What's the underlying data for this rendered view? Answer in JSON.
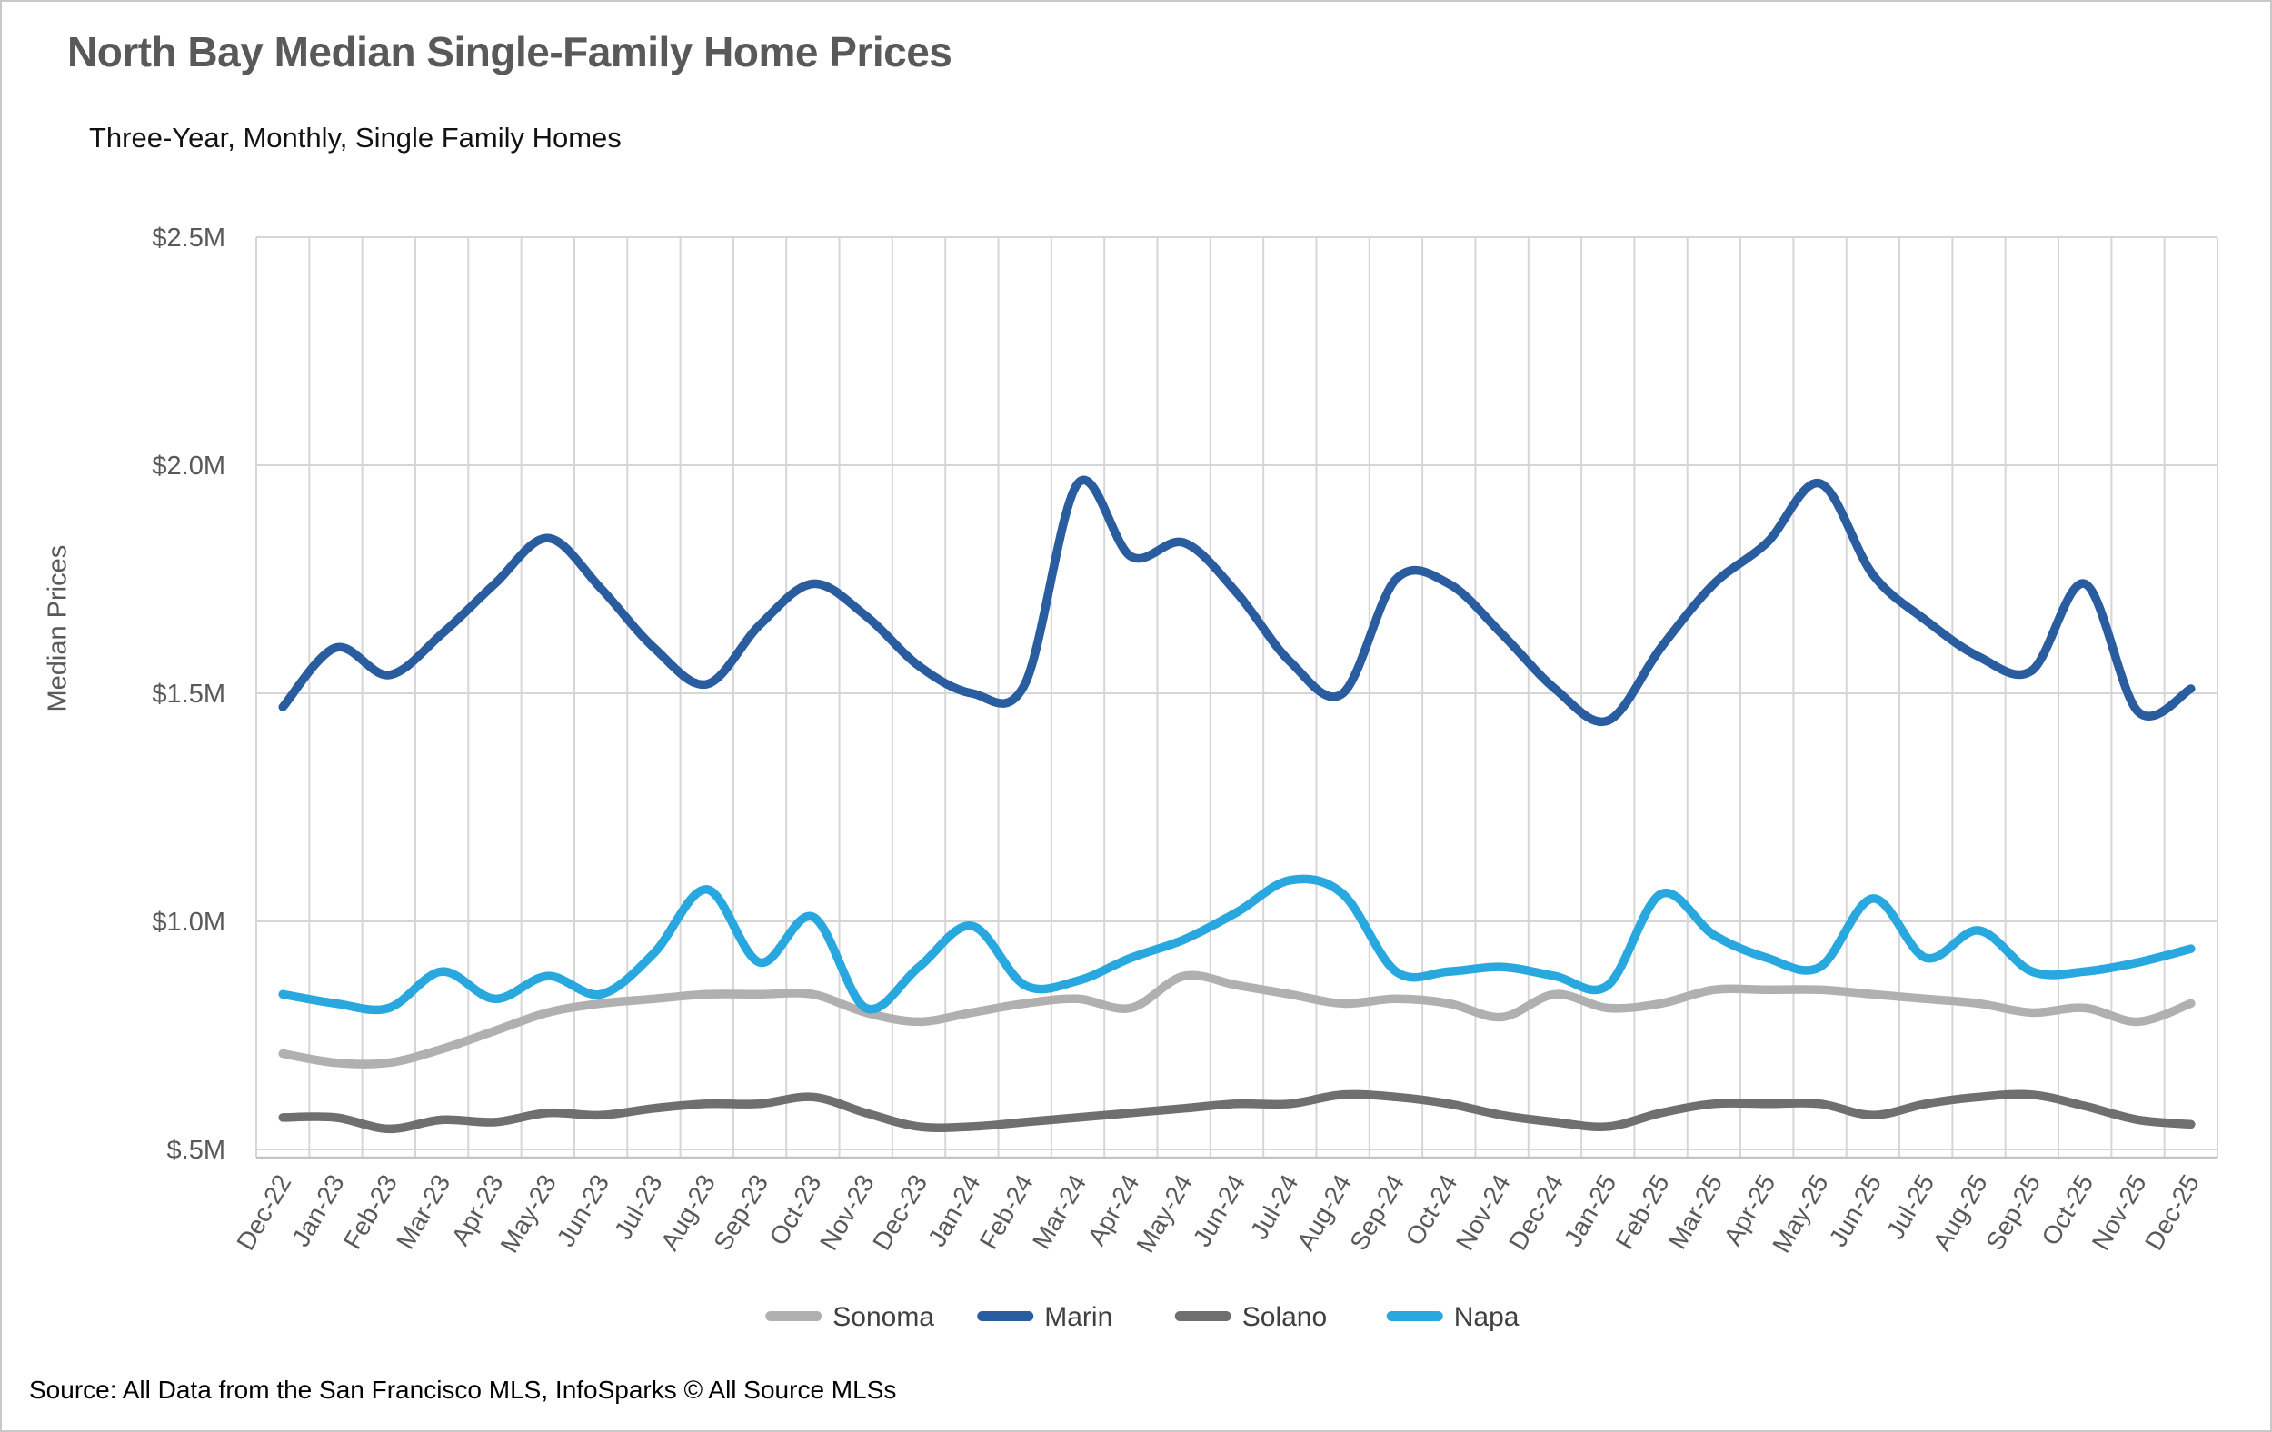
{
  "header": {
    "title": "North Bay Median Single-Family Home Prices",
    "subtitle": "Three-Year, Monthly, Single Family Homes"
  },
  "source_note": "Source: All Data from the San Francisco MLS, InfoSparks © All Source MLSs",
  "colors": {
    "grid": "#d6d6d6",
    "axis_text": "#595959",
    "legend_text": "#3f3f3f",
    "title_text": "#595959"
  },
  "chart_data": {
    "type": "line",
    "title": "North Bay Median Single-Family Home Prices",
    "subtitle": "Three-Year, Monthly, Single Family Homes",
    "xlabel": "",
    "ylabel": "Median Prices",
    "ylim": [
      0.48,
      2.5
    ],
    "yticks": [
      2.5,
      2.0,
      1.5,
      1.0,
      0.5
    ],
    "ytick_labels": [
      "$2.5M",
      "$2.0M",
      "$1.5M",
      "$1.0M",
      "$.5M"
    ],
    "grid": true,
    "legend_position": "bottom",
    "line_smoothing": true,
    "categories": [
      "Dec-22",
      "Jan-23",
      "Feb-23",
      "Mar-23",
      "Apr-23",
      "May-23",
      "Jun-23",
      "Jul-23",
      "Aug-23",
      "Sep-23",
      "Oct-23",
      "Nov-23",
      "Dec-23",
      "Jan-24",
      "Feb-24",
      "Mar-24",
      "Apr-24",
      "May-24",
      "Jun-24",
      "Jul-24",
      "Aug-24",
      "Sep-24",
      "Oct-24",
      "Nov-24",
      "Dec-24",
      "Jan-25",
      "Feb-25",
      "Mar-25",
      "Apr-25",
      "May-25",
      "Jun-25",
      "Jul-25",
      "Aug-25",
      "Sep-25",
      "Oct-25",
      "Nov-25",
      "Dec-25"
    ],
    "units": "millions USD",
    "series": [
      {
        "name": "Sonoma",
        "color": "#b0b0b0",
        "values": [
          0.71,
          0.69,
          0.69,
          0.72,
          0.76,
          0.8,
          0.82,
          0.83,
          0.84,
          0.84,
          0.84,
          0.8,
          0.78,
          0.8,
          0.82,
          0.83,
          0.81,
          0.88,
          0.86,
          0.84,
          0.82,
          0.83,
          0.82,
          0.79,
          0.84,
          0.81,
          0.82,
          0.85,
          0.85,
          0.85,
          0.84,
          0.83,
          0.82,
          0.8,
          0.81,
          0.78,
          0.82
        ]
      },
      {
        "name": "Marin",
        "color": "#2a5da0",
        "values": [
          1.47,
          1.6,
          1.54,
          1.63,
          1.74,
          1.84,
          1.73,
          1.6,
          1.52,
          1.65,
          1.74,
          1.67,
          1.56,
          1.5,
          1.52,
          1.96,
          1.8,
          1.83,
          1.72,
          1.57,
          1.5,
          1.75,
          1.74,
          1.63,
          1.51,
          1.44,
          1.6,
          1.74,
          1.83,
          1.96,
          1.76,
          1.66,
          1.58,
          1.55,
          1.74,
          1.46,
          1.51
        ]
      },
      {
        "name": "Solano",
        "color": "#6f6f6f",
        "values": [
          0.57,
          0.57,
          0.545,
          0.565,
          0.56,
          0.58,
          0.575,
          0.59,
          0.6,
          0.6,
          0.615,
          0.58,
          0.55,
          0.55,
          0.56,
          0.57,
          0.58,
          0.59,
          0.6,
          0.6,
          0.62,
          0.615,
          0.6,
          0.575,
          0.56,
          0.55,
          0.58,
          0.6,
          0.6,
          0.6,
          0.575,
          0.6,
          0.615,
          0.62,
          0.595,
          0.565,
          0.555
        ]
      },
      {
        "name": "Napa",
        "color": "#29a8df",
        "values": [
          0.84,
          0.82,
          0.81,
          0.89,
          0.83,
          0.88,
          0.84,
          0.93,
          1.07,
          0.91,
          1.01,
          0.81,
          0.9,
          0.99,
          0.86,
          0.87,
          0.92,
          0.96,
          1.02,
          1.09,
          1.06,
          0.89,
          0.89,
          0.9,
          0.88,
          0.86,
          1.06,
          0.97,
          0.92,
          0.9,
          1.05,
          0.92,
          0.98,
          0.89,
          0.89,
          0.91,
          0.94
        ]
      }
    ]
  }
}
